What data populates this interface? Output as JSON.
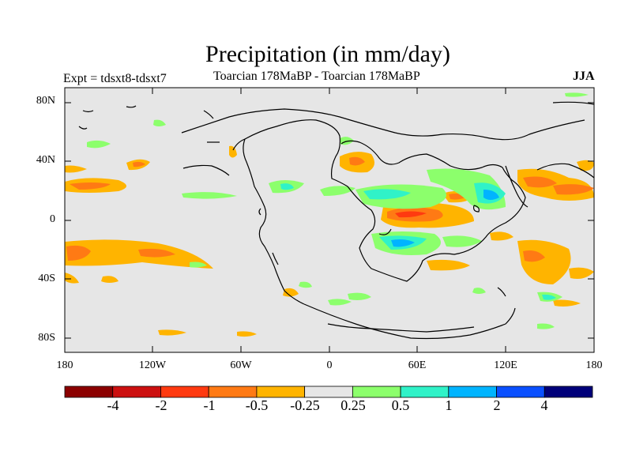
{
  "title": "Precipitation (in mm/day)",
  "left_label": "Expt = tdsxt8-tdsxt7",
  "center_label": "Toarcian 178MaBP - Toarcian 178MaBP",
  "right_label": "JJA",
  "axes": {
    "x_ticks": [
      "180",
      "120W",
      "60W",
      "0",
      "60E",
      "120E",
      "180"
    ],
    "y_ticks": [
      "80N",
      "40N",
      "0",
      "40S",
      "80S"
    ]
  },
  "colorbar": {
    "labels": [
      "-4",
      "-2",
      "-1",
      "-0.5",
      "-0.25",
      "0.25",
      "0.5",
      "1",
      "2",
      "4"
    ],
    "colors": [
      "#8b0000",
      "#cc1010",
      "#ff3a10",
      "#ff7a14",
      "#ffb400",
      "#e6e6e6",
      "#8cff6c",
      "#30f2c8",
      "#00b4ff",
      "#0a50ff",
      "#00007a"
    ]
  },
  "colors": {
    "background": "#e6e6e6",
    "coast": "#000000"
  }
}
